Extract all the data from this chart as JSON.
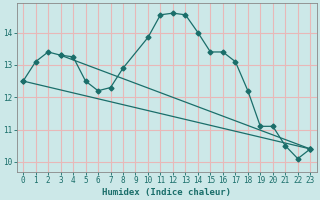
{
  "xlabel": "Humidex (Indice chaleur)",
  "bg_color": "#cce8e8",
  "grid_color": "#e8b8b8",
  "line_color": "#1a6e6a",
  "xlim": [
    -0.5,
    23.5
  ],
  "ylim": [
    9.7,
    14.9
  ],
  "yticks": [
    10,
    11,
    12,
    13,
    14
  ],
  "xticks": [
    0,
    1,
    2,
    3,
    4,
    5,
    6,
    7,
    8,
    9,
    10,
    11,
    12,
    13,
    14,
    15,
    16,
    17,
    18,
    19,
    20,
    21,
    22,
    23
  ],
  "line1_x": [
    0,
    1,
    2,
    3,
    4,
    5,
    6,
    7,
    8,
    10,
    11,
    12,
    13,
    14,
    15,
    16,
    17,
    18,
    19,
    20,
    21,
    22,
    23
  ],
  "line1_y": [
    12.5,
    13.1,
    13.4,
    13.3,
    13.25,
    12.5,
    12.2,
    12.3,
    12.9,
    13.85,
    14.55,
    14.6,
    14.55,
    14.0,
    13.4,
    13.4,
    13.1,
    12.2,
    11.1,
    11.1,
    10.5,
    10.1,
    10.4
  ],
  "line2_x": [
    0,
    23
  ],
  "line2_y": [
    12.5,
    10.4
  ],
  "line3_x": [
    3,
    23
  ],
  "line3_y": [
    13.3,
    10.4
  ],
  "marker_size": 2.5
}
